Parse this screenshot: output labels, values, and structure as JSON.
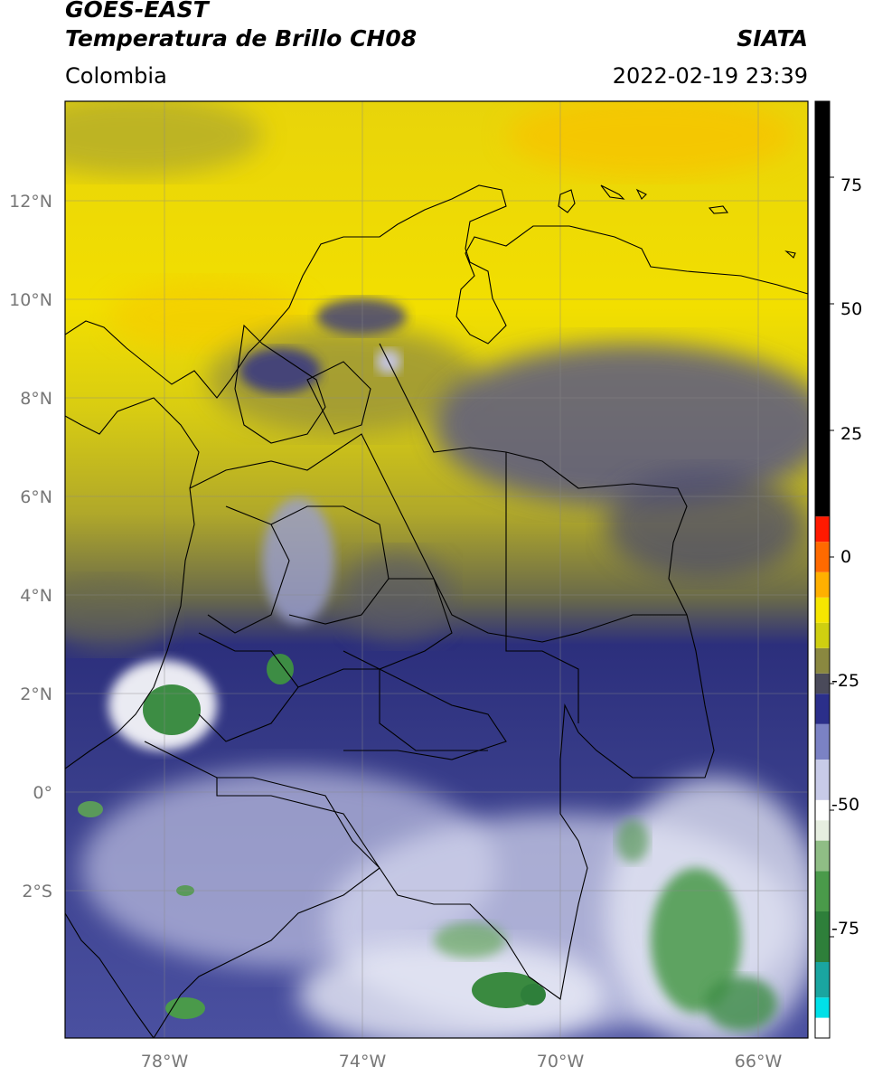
{
  "header": {
    "satellite": "GOES-EAST",
    "product": "Temperatura de Brillo CH08",
    "organization": "SIATA",
    "region": "Colombia",
    "timestamp": "2022-02-19 23:39"
  },
  "map": {
    "lon_range": [
      -80,
      -65
    ],
    "lat_range": [
      -5,
      14
    ],
    "lat_ticks": [
      {
        "value": 12,
        "label": "12°N"
      },
      {
        "value": 10,
        "label": "10°N"
      },
      {
        "value": 8,
        "label": "8°N"
      },
      {
        "value": 6,
        "label": "6°N"
      },
      {
        "value": 4,
        "label": "4°N"
      },
      {
        "value": 2,
        "label": "2°N"
      },
      {
        "value": 0,
        "label": "0°"
      },
      {
        "value": -2,
        "label": "2°S"
      }
    ],
    "lon_ticks": [
      {
        "value": -78,
        "label": "78°W"
      },
      {
        "value": -74,
        "label": "74°W"
      },
      {
        "value": -70,
        "label": "70°W"
      },
      {
        "value": -66,
        "label": "66°W"
      }
    ],
    "colors": {
      "warm_yellow": "#f2dd00",
      "olive": "#8f8a3c",
      "navy": "#2a2f7a",
      "lavender": "#a7acd6",
      "white": "#f4f5fb",
      "green": "#3d8d44"
    }
  },
  "colorbar": {
    "ticks": [
      {
        "value": 75,
        "label": "75"
      },
      {
        "value": 50,
        "label": "50"
      },
      {
        "value": 25,
        "label": "25"
      },
      {
        "value": 0,
        "label": "0"
      },
      {
        "value": -25,
        "label": "-25"
      },
      {
        "value": -50,
        "label": "-50"
      },
      {
        "value": -75,
        "label": "-75"
      }
    ],
    "range": [
      -95,
      90
    ],
    "segments": [
      {
        "from": -95,
        "to": -91,
        "color": "#ffffff"
      },
      {
        "from": -91,
        "to": -87,
        "color": "#00e0e8"
      },
      {
        "from": -87,
        "to": -80,
        "color": "#1aa5a0"
      },
      {
        "from": -80,
        "to": -70,
        "color": "#2e7f3a"
      },
      {
        "from": -70,
        "to": -62,
        "color": "#4a9a4a"
      },
      {
        "from": -62,
        "to": -56,
        "color": "#8fbd85"
      },
      {
        "from": -56,
        "to": -52,
        "color": "#e6eee0"
      },
      {
        "from": -52,
        "to": -48,
        "color": "#ffffff"
      },
      {
        "from": -48,
        "to": -40,
        "color": "#c8cbe8"
      },
      {
        "from": -40,
        "to": -33,
        "color": "#7b82c4"
      },
      {
        "from": -33,
        "to": -27,
        "color": "#2b2f8a"
      },
      {
        "from": -27,
        "to": -23,
        "color": "#4a4a5a"
      },
      {
        "from": -23,
        "to": -18,
        "color": "#8a8840"
      },
      {
        "from": -18,
        "to": -13,
        "color": "#cfcf10"
      },
      {
        "from": -13,
        "to": -8,
        "color": "#f6e600"
      },
      {
        "from": -8,
        "to": -3,
        "color": "#ffb000"
      },
      {
        "from": -3,
        "to": 3,
        "color": "#ff6a00"
      },
      {
        "from": 3,
        "to": 8,
        "color": "#ff1a00"
      },
      {
        "from": 8,
        "to": 90,
        "color": "#000000"
      }
    ]
  }
}
